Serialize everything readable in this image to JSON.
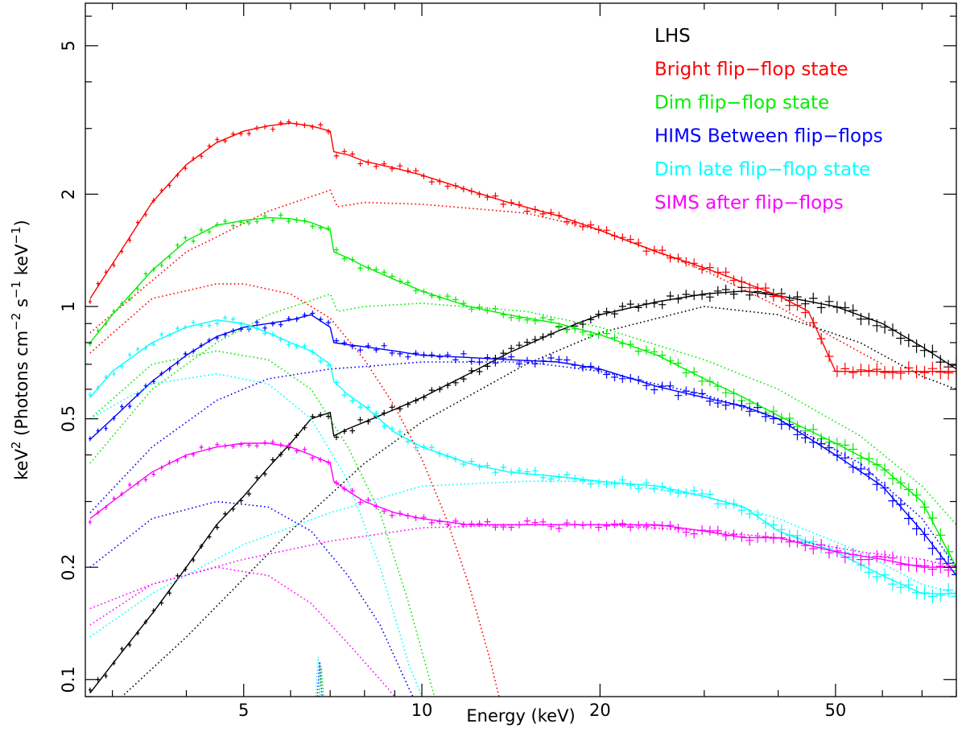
{
  "chart_data": {
    "type": "line",
    "title": "",
    "xlabel": "Energy (keV)",
    "ylabel_parts": {
      "p1": "keV",
      "p2": "2",
      "p3": " (Photons cm",
      "p4": "−2",
      "p5": " s",
      "p6": "−1",
      "p7": " keV",
      "p8": "−1",
      "p9": ")"
    },
    "x_scale": "log",
    "y_scale": "log",
    "xlim": [
      2.7,
      80
    ],
    "ylim": [
      0.09,
      6.5
    ],
    "x_ticks": [
      5,
      10,
      20,
      50
    ],
    "x_tick_labels": [
      "5",
      "10",
      "20",
      "50"
    ],
    "y_ticks": [
      0.1,
      0.2,
      0.5,
      1,
      2,
      5
    ],
    "y_tick_labels": [
      "0.1",
      "0.2",
      "0.5",
      "1",
      "2",
      "5"
    ],
    "legend": [
      "LHS",
      "Bright flip−flop state",
      "Dim flip−flop state",
      "HIMS Between flip−flops",
      "Dim late flip−flop state",
      "SIMS after flip−flops"
    ],
    "legend_position": "top-right",
    "series": [
      {
        "name": "LHS",
        "color": "#000000",
        "data": [
          [
            2.75,
            0.092
          ],
          [
            3,
            0.11
          ],
          [
            3.5,
            0.15
          ],
          [
            4,
            0.2
          ],
          [
            4.5,
            0.26
          ],
          [
            5,
            0.31
          ],
          [
            5.5,
            0.37
          ],
          [
            6,
            0.43
          ],
          [
            6.5,
            0.5
          ],
          [
            7,
            0.52
          ],
          [
            7.1,
            0.45
          ],
          [
            7.5,
            0.47
          ],
          [
            8,
            0.49
          ],
          [
            9,
            0.53
          ],
          [
            10,
            0.57
          ],
          [
            12,
            0.66
          ],
          [
            14,
            0.75
          ],
          [
            17,
            0.86
          ],
          [
            20,
            0.95
          ],
          [
            25,
            1.03
          ],
          [
            30,
            1.08
          ],
          [
            35,
            1.1
          ],
          [
            40,
            1.07
          ],
          [
            50,
            1.0
          ],
          [
            60,
            0.9
          ],
          [
            70,
            0.78
          ],
          [
            80,
            0.68
          ]
        ],
        "components": [
          [
            [
              2.75,
              0.075
            ],
            [
              4,
              0.13
            ],
            [
              6,
              0.25
            ],
            [
              8,
              0.38
            ],
            [
              10,
              0.49
            ],
            [
              15,
              0.7
            ],
            [
              20,
              0.85
            ],
            [
              30,
              1.0
            ],
            [
              40,
              0.95
            ],
            [
              55,
              0.8
            ],
            [
              70,
              0.65
            ],
            [
              80,
              0.6
            ]
          ]
        ]
      },
      {
        "name": "Bright flip−flop state",
        "color": "#ff0000",
        "data": [
          [
            2.75,
            1.05
          ],
          [
            3,
            1.3
          ],
          [
            3.5,
            1.9
          ],
          [
            4,
            2.4
          ],
          [
            4.5,
            2.75
          ],
          [
            5,
            2.95
          ],
          [
            5.5,
            3.05
          ],
          [
            6,
            3.1
          ],
          [
            6.5,
            3.05
          ],
          [
            7,
            2.95
          ],
          [
            7.1,
            2.6
          ],
          [
            7.5,
            2.55
          ],
          [
            8,
            2.45
          ],
          [
            9,
            2.35
          ],
          [
            10,
            2.25
          ],
          [
            12,
            2.05
          ],
          [
            14,
            1.9
          ],
          [
            17,
            1.75
          ],
          [
            20,
            1.6
          ],
          [
            25,
            1.4
          ],
          [
            30,
            1.27
          ],
          [
            35,
            1.16
          ],
          [
            40,
            1.07
          ],
          [
            45,
            0.97
          ],
          [
            50,
            0.67
          ],
          [
            80,
            0.67
          ]
        ],
        "components": [
          [
            [
              2.75,
              0.75
            ],
            [
              3.5,
              1.05
            ],
            [
              4.5,
              1.15
            ],
            [
              5,
              1.15
            ],
            [
              6,
              1.08
            ],
            [
              7,
              0.93
            ],
            [
              8,
              0.72
            ],
            [
              9,
              0.54
            ],
            [
              10,
              0.39
            ],
            [
              11,
              0.27
            ],
            [
              12,
              0.18
            ],
            [
              13,
              0.115
            ],
            [
              13.5,
              0.09
            ]
          ],
          [
            [
              2.75,
              0.85
            ],
            [
              4,
              1.4
            ],
            [
              5.5,
              1.8
            ],
            [
              7,
              2.05
            ],
            [
              7.2,
              1.85
            ],
            [
              8,
              1.9
            ],
            [
              10,
              1.88
            ],
            [
              15,
              1.78
            ],
            [
              20,
              1.6
            ],
            [
              30,
              1.25
            ],
            [
              40,
              1.0
            ],
            [
              50,
              0.82
            ],
            [
              60,
              0.7
            ]
          ]
        ]
      },
      {
        "name": "Dim flip−flop state",
        "color": "#00ee00",
        "data": [
          [
            2.75,
            0.8
          ],
          [
            3,
            0.95
          ],
          [
            3.5,
            1.25
          ],
          [
            4,
            1.5
          ],
          [
            4.5,
            1.65
          ],
          [
            5,
            1.7
          ],
          [
            5.5,
            1.73
          ],
          [
            6,
            1.72
          ],
          [
            6.5,
            1.68
          ],
          [
            7,
            1.6
          ],
          [
            7.1,
            1.4
          ],
          [
            7.5,
            1.35
          ],
          [
            8,
            1.28
          ],
          [
            9,
            1.18
          ],
          [
            10,
            1.1
          ],
          [
            12,
            1.0
          ],
          [
            14,
            0.95
          ],
          [
            17,
            0.9
          ],
          [
            20,
            0.84
          ],
          [
            25,
            0.74
          ],
          [
            30,
            0.64
          ],
          [
            35,
            0.57
          ],
          [
            40,
            0.51
          ],
          [
            50,
            0.43
          ],
          [
            60,
            0.37
          ],
          [
            70,
            0.3
          ],
          [
            80,
            0.2
          ]
        ],
        "components": [
          [
            [
              2.75,
              0.5
            ],
            [
              3.5,
              0.7
            ],
            [
              4.5,
              0.76
            ],
            [
              5.5,
              0.72
            ],
            [
              6.5,
              0.6
            ],
            [
              7.5,
              0.42
            ],
            [
              8.5,
              0.28
            ],
            [
              9.5,
              0.16
            ],
            [
              10.5,
              0.09
            ]
          ],
          [
            [
              2.75,
              0.38
            ],
            [
              3.5,
              0.6
            ],
            [
              4.5,
              0.8
            ],
            [
              5.5,
              0.95
            ],
            [
              7,
              1.08
            ],
            [
              7.2,
              0.97
            ],
            [
              8,
              1.0
            ],
            [
              10,
              1.02
            ],
            [
              15,
              0.97
            ],
            [
              20,
              0.88
            ],
            [
              30,
              0.72
            ],
            [
              40,
              0.6
            ],
            [
              55,
              0.45
            ],
            [
              70,
              0.33
            ],
            [
              80,
              0.26
            ]
          ]
        ]
      },
      {
        "name": "HIMS Between flip−flops",
        "color": "#0000ff",
        "data": [
          [
            2.75,
            0.44
          ],
          [
            3,
            0.5
          ],
          [
            3.5,
            0.63
          ],
          [
            4,
            0.74
          ],
          [
            4.5,
            0.83
          ],
          [
            5,
            0.88
          ],
          [
            5.5,
            0.9
          ],
          [
            6,
            0.92
          ],
          [
            6.5,
            0.95
          ],
          [
            7,
            0.88
          ],
          [
            7.1,
            0.8
          ],
          [
            7.5,
            0.79
          ],
          [
            8,
            0.78
          ],
          [
            9,
            0.76
          ],
          [
            10,
            0.74
          ],
          [
            12,
            0.73
          ],
          [
            14,
            0.72
          ],
          [
            17,
            0.71
          ],
          [
            20,
            0.68
          ],
          [
            25,
            0.61
          ],
          [
            30,
            0.57
          ],
          [
            35,
            0.54
          ],
          [
            40,
            0.5
          ],
          [
            50,
            0.4
          ],
          [
            60,
            0.33
          ],
          [
            70,
            0.25
          ],
          [
            80,
            0.19
          ]
        ],
        "components": [
          [
            [
              2.75,
              0.2
            ],
            [
              3.5,
              0.27
            ],
            [
              4.5,
              0.3
            ],
            [
              5.5,
              0.29
            ],
            [
              6.5,
              0.25
            ],
            [
              7.5,
              0.19
            ],
            [
              8.5,
              0.14
            ],
            [
              9.5,
              0.095
            ],
            [
              10,
              0.08
            ]
          ],
          [
            [
              2.75,
              0.28
            ],
            [
              3.5,
              0.42
            ],
            [
              4.5,
              0.56
            ],
            [
              5.5,
              0.64
            ],
            [
              7,
              0.68
            ],
            [
              8,
              0.69
            ],
            [
              10,
              0.71
            ],
            [
              15,
              0.71
            ],
            [
              20,
              0.67
            ],
            [
              30,
              0.58
            ],
            [
              40,
              0.5
            ],
            [
              55,
              0.38
            ],
            [
              70,
              0.27
            ],
            [
              80,
              0.2
            ]
          ]
        ]
      },
      {
        "name": "Dim late flip−flop state",
        "color": "#00ffff",
        "data": [
          [
            2.75,
            0.57
          ],
          [
            3,
            0.67
          ],
          [
            3.5,
            0.8
          ],
          [
            4,
            0.88
          ],
          [
            4.5,
            0.92
          ],
          [
            5,
            0.9
          ],
          [
            5.5,
            0.85
          ],
          [
            6,
            0.8
          ],
          [
            6.5,
            0.76
          ],
          [
            7,
            0.7
          ],
          [
            7.1,
            0.63
          ],
          [
            7.5,
            0.58
          ],
          [
            8,
            0.54
          ],
          [
            9,
            0.46
          ],
          [
            10,
            0.42
          ],
          [
            12,
            0.38
          ],
          [
            14,
            0.36
          ],
          [
            17,
            0.35
          ],
          [
            20,
            0.34
          ],
          [
            25,
            0.33
          ],
          [
            30,
            0.31
          ],
          [
            35,
            0.29
          ],
          [
            40,
            0.25
          ],
          [
            50,
            0.22
          ],
          [
            60,
            0.19
          ],
          [
            70,
            0.17
          ],
          [
            80,
            0.17
          ]
        ],
        "components": [
          [
            [
              2.75,
              0.5
            ],
            [
              3.5,
              0.62
            ],
            [
              4.5,
              0.66
            ],
            [
              5.5,
              0.62
            ],
            [
              6.5,
              0.5
            ],
            [
              7.5,
              0.34
            ],
            [
              8.5,
              0.2
            ],
            [
              9.5,
              0.11
            ],
            [
              10,
              0.09
            ]
          ],
          [
            [
              2.75,
              0.13
            ],
            [
              3.5,
              0.17
            ],
            [
              5,
              0.23
            ],
            [
              7,
              0.28
            ],
            [
              10,
              0.33
            ],
            [
              15,
              0.34
            ],
            [
              20,
              0.34
            ],
            [
              30,
              0.31
            ],
            [
              40,
              0.27
            ],
            [
              55,
              0.22
            ],
            [
              70,
              0.18
            ],
            [
              80,
              0.17
            ]
          ]
        ]
      },
      {
        "name": "SIMS after flip−flops",
        "color": "#ff00ff",
        "data": [
          [
            2.75,
            0.27
          ],
          [
            3,
            0.3
          ],
          [
            3.5,
            0.36
          ],
          [
            4,
            0.4
          ],
          [
            4.5,
            0.42
          ],
          [
            5,
            0.43
          ],
          [
            5.5,
            0.43
          ],
          [
            6,
            0.42
          ],
          [
            6.5,
            0.4
          ],
          [
            7,
            0.38
          ],
          [
            7.1,
            0.34
          ],
          [
            7.5,
            0.32
          ],
          [
            8,
            0.3
          ],
          [
            9,
            0.28
          ],
          [
            10,
            0.27
          ],
          [
            12,
            0.26
          ],
          [
            14,
            0.26
          ],
          [
            17,
            0.26
          ],
          [
            20,
            0.26
          ],
          [
            25,
            0.26
          ],
          [
            30,
            0.25
          ],
          [
            35,
            0.24
          ],
          [
            40,
            0.24
          ],
          [
            50,
            0.22
          ],
          [
            60,
            0.21
          ],
          [
            70,
            0.2
          ],
          [
            80,
            0.2
          ]
        ],
        "components": [
          [
            [
              2.75,
              0.14
            ],
            [
              3.5,
              0.18
            ],
            [
              4.5,
              0.2
            ],
            [
              5.5,
              0.19
            ],
            [
              6.5,
              0.16
            ],
            [
              7.5,
              0.125
            ],
            [
              8.5,
              0.1
            ],
            [
              9,
              0.09
            ]
          ],
          [
            [
              2.75,
              0.155
            ],
            [
              3.5,
              0.18
            ],
            [
              5,
              0.21
            ],
            [
              7,
              0.235
            ],
            [
              10,
              0.255
            ],
            [
              15,
              0.26
            ],
            [
              20,
              0.26
            ],
            [
              30,
              0.25
            ],
            [
              40,
              0.24
            ],
            [
              55,
              0.22
            ],
            [
              70,
              0.21
            ],
            [
              80,
              0.2
            ]
          ]
        ]
      }
    ],
    "iron_line_energy": 6.7
  }
}
